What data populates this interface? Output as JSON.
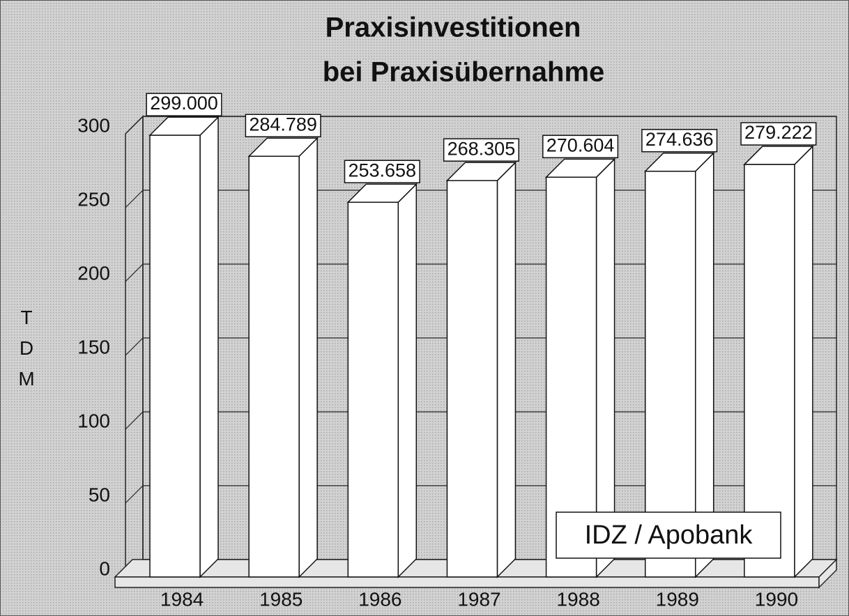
{
  "chart_data": {
    "type": "bar3d",
    "title": [
      "Praxisinvestitionen",
      "bei Praxisübernahme"
    ],
    "ylabel": "TDM",
    "categories": [
      "1984",
      "1985",
      "1986",
      "1987",
      "1988",
      "1989",
      "1990"
    ],
    "values": [
      299.0,
      284.789,
      253.658,
      268.305,
      270.604,
      274.636,
      279.222
    ],
    "value_labels": [
      "299.000",
      "284.789",
      "253.658",
      "268.305",
      "270.604",
      "274.636",
      "279.222"
    ],
    "color": "#ffffff",
    "ylim": [
      0,
      300
    ],
    "yticks": [
      0,
      50,
      100,
      150,
      200,
      250,
      300
    ],
    "grid": true,
    "annotation": "IDZ / Apobank"
  }
}
